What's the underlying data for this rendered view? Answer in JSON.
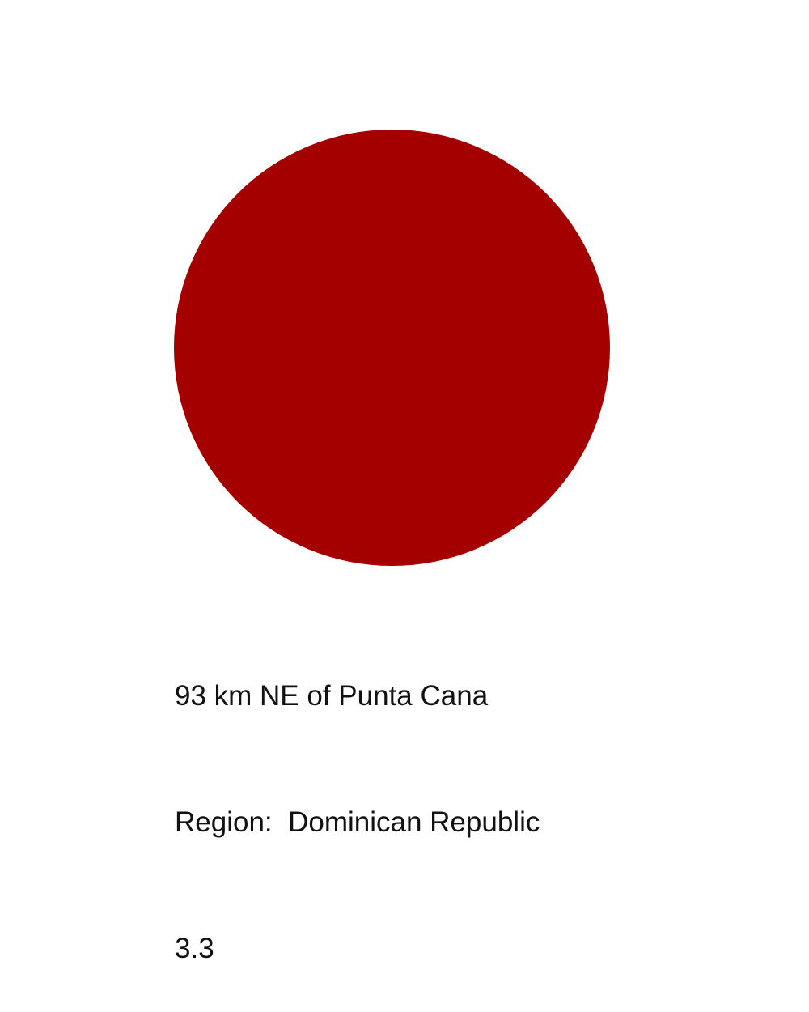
{
  "marker": {
    "icon": "event-circle-icon",
    "color": "#a50000"
  },
  "info": {
    "location": "93 km NE of Punta Cana",
    "region": "Region:  Dominican Republic",
    "magnitude": "3.3"
  }
}
